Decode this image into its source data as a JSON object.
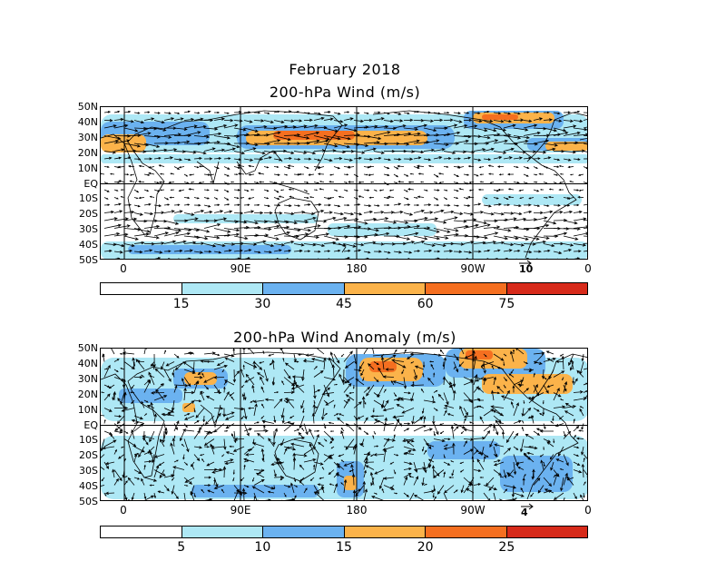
{
  "titles": {
    "month": "February 2018",
    "wind": "200-hPa Wind (m/s)",
    "anomaly": "200-hPa Wind Anomaly (m/s)"
  },
  "axes": {
    "lat_labels": [
      "50N",
      "40N",
      "30N",
      "20N",
      "10N",
      "EQ",
      "10S",
      "20S",
      "30S",
      "40S",
      "50S"
    ],
    "lon_labels": [
      "0",
      "90E",
      "180",
      "90W",
      "0"
    ]
  },
  "panels": [
    {
      "name": "wind",
      "reference_vector": "10",
      "colorbar": {
        "colors": [
          "#ffffff",
          "#aee8f5",
          "#6bb2f0",
          "#fbb34a",
          "#f56f20",
          "#d72a1a"
        ],
        "labels": [
          "15",
          "30",
          "45",
          "60",
          "75"
        ]
      }
    },
    {
      "name": "anomaly",
      "reference_vector": "4",
      "colorbar": {
        "colors": [
          "#ffffff",
          "#aee8f5",
          "#6bb2f0",
          "#fbb34a",
          "#f56f20",
          "#d72a1a"
        ],
        "labels": [
          "5",
          "10",
          "15",
          "20",
          "25"
        ]
      }
    }
  ]
}
